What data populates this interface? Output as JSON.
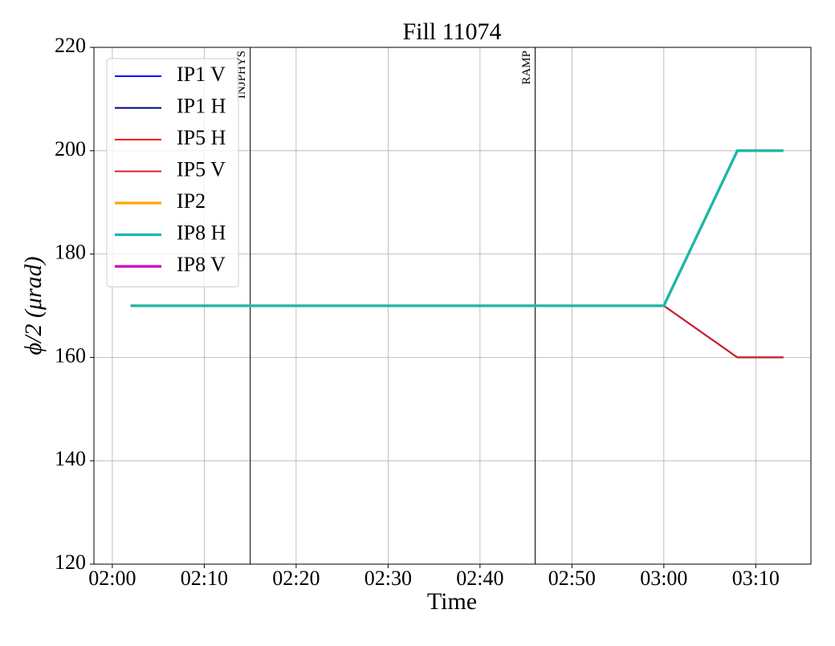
{
  "chart_data": {
    "type": "line",
    "title": "Fill 11074",
    "x_label": "Time",
    "y_label": "ϕ/2 (μrad)",
    "x": [
      "02:02",
      "03:00",
      "03:08",
      "03:13"
    ],
    "series": [
      {
        "name": "IP1 V",
        "color": "#0000ff",
        "linewidth": 1.5,
        "values": [
          170,
          170,
          160,
          160
        ]
      },
      {
        "name": "IP1 H",
        "color": "#00008b",
        "linewidth": 1.5,
        "values": [
          170,
          170,
          160,
          160
        ]
      },
      {
        "name": "IP5 H",
        "color": "#ff0000",
        "linewidth": 1.5,
        "values": [
          170,
          170,
          160,
          160
        ]
      },
      {
        "name": "IP5 V",
        "color": "#d0202a",
        "linewidth": 1.5,
        "values": [
          170,
          170,
          160,
          160
        ]
      },
      {
        "name": "IP2",
        "color": "#ffa500",
        "linewidth": 2.5,
        "values": [
          170,
          170,
          200,
          200
        ]
      },
      {
        "name": "IP8 H",
        "color": "#17b8b0",
        "linewidth": 2.5,
        "values": [
          170,
          170,
          200,
          200
        ]
      },
      {
        "name": "IP8 V",
        "color": "#cc00cc",
        "linewidth": 2.5,
        "values": [
          null,
          null,
          null,
          null
        ]
      }
    ],
    "xlim": [
      "01:58",
      "03:16"
    ],
    "xticks": [
      "02:00",
      "02:10",
      "02:20",
      "02:30",
      "02:40",
      "02:50",
      "03:00",
      "03:10"
    ],
    "ylim": [
      120,
      220
    ],
    "yticks": [
      120,
      140,
      160,
      180,
      200,
      220
    ],
    "grid": true,
    "legend": "upper left",
    "annotations": [
      {
        "x": "02:15",
        "label": "INJPHYS"
      },
      {
        "x": "02:46",
        "label": "RAMP"
      }
    ]
  }
}
